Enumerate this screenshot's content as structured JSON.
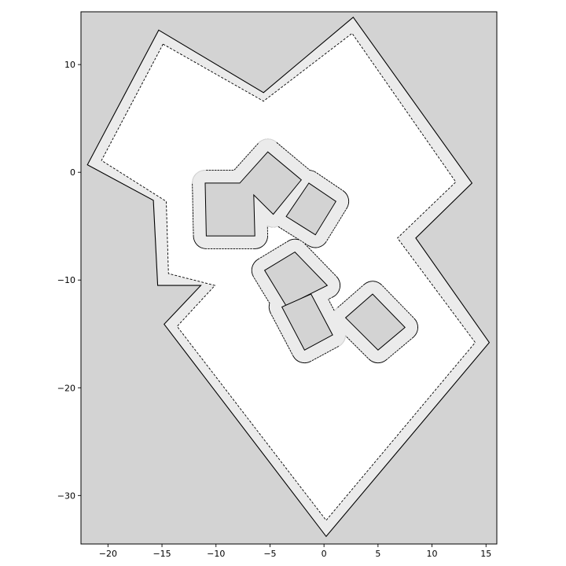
{
  "chart_data": {
    "type": "polygon-map",
    "xlim": [
      -22.5,
      16.0
    ],
    "ylim": [
      -34.5,
      14.9
    ],
    "aspect": "equal",
    "grid": false,
    "background_color": "#d3d3d3",
    "free_space_color": "#ffffff",
    "buffer_color": "#ebebeb",
    "x_ticks": [
      -20,
      -15,
      -10,
      -5,
      0,
      5,
      10,
      15
    ],
    "x_tick_labels": [
      "−20",
      "−15",
      "−10",
      "−5",
      "0",
      "5",
      "10",
      "15"
    ],
    "y_ticks": [
      10,
      0,
      -10,
      -20,
      -30
    ],
    "y_tick_labels": [
      "10",
      "0",
      "−10",
      "−20",
      "−30"
    ],
    "boundary": [
      [
        -15.3,
        13.2
      ],
      [
        -5.6,
        7.4
      ],
      [
        2.7,
        14.4
      ],
      [
        13.7,
        -1.0
      ],
      [
        8.5,
        -6.1
      ],
      [
        15.3,
        -15.8
      ],
      [
        0.2,
        -33.8
      ],
      [
        -14.8,
        -14.1
      ],
      [
        -11.4,
        -10.5
      ],
      [
        -15.4,
        -10.5
      ],
      [
        -15.8,
        -2.6
      ],
      [
        -21.9,
        0.7
      ]
    ],
    "boundary_inset": [
      [
        -14.9,
        11.9
      ],
      [
        -5.6,
        6.6
      ],
      [
        2.6,
        12.9
      ],
      [
        12.2,
        -0.9
      ],
      [
        6.8,
        -6.1
      ],
      [
        14.0,
        -15.8
      ],
      [
        0.2,
        -32.3
      ],
      [
        -13.6,
        -14.3
      ],
      [
        -10.1,
        -10.5
      ],
      [
        -14.4,
        -9.4
      ],
      [
        -14.6,
        -2.7
      ],
      [
        -20.6,
        1.1
      ]
    ],
    "obstacles": [
      [
        [
          -11.0,
          -1.0
        ],
        [
          -7.8,
          -1.0
        ],
        [
          -5.2,
          1.9
        ],
        [
          -2.1,
          -0.7
        ],
        [
          -4.7,
          -3.9
        ],
        [
          -6.5,
          -2.1
        ],
        [
          -6.4,
          -5.9
        ],
        [
          -10.9,
          -5.9
        ]
      ],
      [
        [
          -1.4,
          -1.0
        ],
        [
          1.1,
          -2.7
        ],
        [
          -0.8,
          -5.8
        ],
        [
          -3.5,
          -4.1
        ]
      ],
      [
        [
          -2.7,
          -7.4
        ],
        [
          0.3,
          -10.5
        ],
        [
          -3.5,
          -12.4
        ],
        [
          -5.5,
          -9.1
        ]
      ],
      [
        [
          -1.2,
          -11.3
        ],
        [
          0.8,
          -15.1
        ],
        [
          -1.8,
          -16.5
        ],
        [
          -3.9,
          -12.5
        ]
      ],
      [
        [
          4.5,
          -11.3
        ],
        [
          7.5,
          -14.4
        ],
        [
          5.0,
          -16.5
        ],
        [
          2.0,
          -13.5
        ]
      ]
    ]
  }
}
